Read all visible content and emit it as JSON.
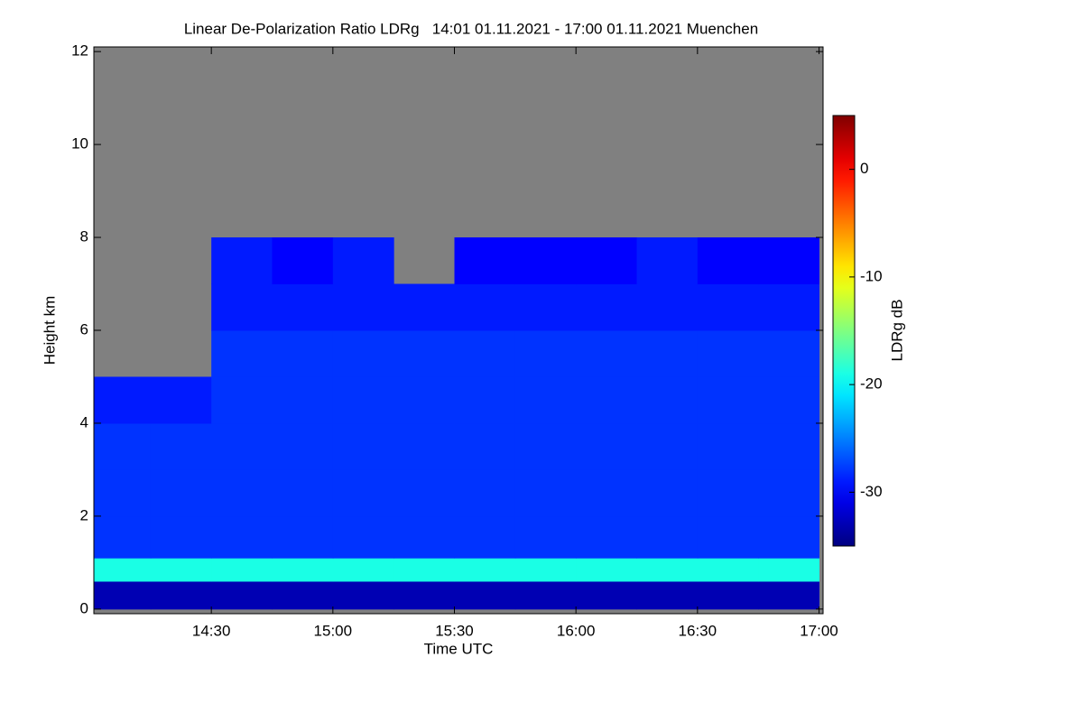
{
  "chart_data": {
    "type": "heatmap",
    "title": "Linear De-Polarization Ratio LDRg   14:01 01.11.2021 - 17:00 01.11.2021 Muenchen",
    "x_label": "Time UTC",
    "y_label": "Height km",
    "colorbar_label": "LDRg dB",
    "colormap": "jet",
    "missing_color": "#808080",
    "xlim": [
      14.0167,
      17.0167
    ],
    "xticks": [
      {
        "value": 14.5,
        "label": "14:30"
      },
      {
        "value": 15.0,
        "label": "15:00"
      },
      {
        "value": 15.5,
        "label": "15:30"
      },
      {
        "value": 16.0,
        "label": "16:00"
      },
      {
        "value": 16.5,
        "label": "16:30"
      },
      {
        "value": 17.0,
        "label": "17:00"
      }
    ],
    "ylim": [
      -0.1,
      12.1
    ],
    "yticks": [
      0,
      2,
      4,
      6,
      8,
      10,
      12
    ],
    "clim": [
      -35,
      5
    ],
    "cticks": [
      0,
      -10,
      -20,
      -30
    ],
    "x_edges": [
      14.0,
      14.25,
      14.5,
      14.75,
      15.0,
      15.25,
      15.5,
      15.75,
      16.0,
      16.25,
      16.5,
      16.75,
      17.0
    ],
    "y_edges": [
      0,
      0.6,
      1.1,
      2,
      3,
      4,
      5,
      6,
      7,
      8
    ],
    "z": [
      [
        -33,
        -33,
        -33,
        -33,
        -33,
        -33,
        -33,
        -33,
        -33,
        -33,
        -33,
        -33
      ],
      [
        -19,
        -19,
        -19,
        -19,
        -19,
        -19,
        -19,
        -19,
        -19,
        -19,
        -19,
        -19
      ],
      [
        -28,
        -28,
        -28,
        -28,
        -28,
        -28,
        -28,
        -28,
        -28,
        -28,
        -28,
        -28
      ],
      [
        -28,
        -28,
        -28,
        -28,
        -28,
        -28,
        -28,
        -28,
        -28,
        -28,
        -28,
        -28
      ],
      [
        -28,
        -28,
        -28,
        -28,
        -28,
        -28,
        -28,
        -28,
        -28,
        -28,
        -28,
        -28
      ],
      [
        -29,
        -29,
        -28,
        -28,
        -28,
        -28,
        -28,
        -28,
        -28,
        -28,
        -28,
        -28
      ],
      [
        null,
        null,
        -28,
        -28,
        -28,
        -28,
        -28,
        -28,
        -28,
        -28,
        -28,
        -28
      ],
      [
        null,
        null,
        -29,
        -29,
        -29,
        -29,
        -29,
        -29,
        -29,
        -29,
        -29,
        -29
      ],
      [
        null,
        null,
        -29,
        -30,
        -29,
        null,
        -30,
        -30,
        -30,
        -29,
        -30,
        -30
      ]
    ]
  }
}
